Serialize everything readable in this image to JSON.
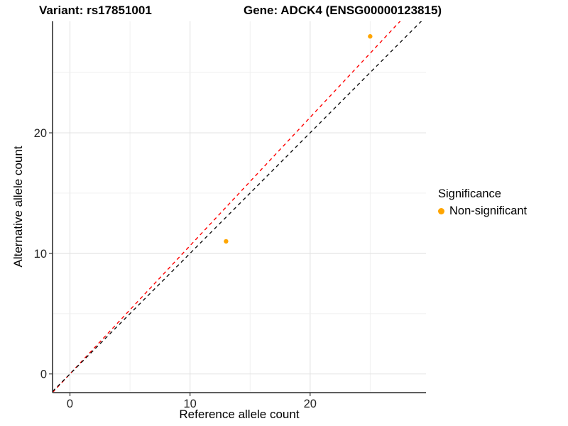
{
  "chart_data": {
    "type": "scatter",
    "title_left": "Variant: rs17851001",
    "title_right": "Gene: ADCK4 (ENSG00000123815)",
    "xlabel": "Reference allele count",
    "ylabel": "Alternative allele count",
    "xlim": [
      -1.45,
      29.65
    ],
    "ylim": [
      -1.55,
      29.25
    ],
    "x_ticks": [
      0,
      10,
      20
    ],
    "y_ticks": [
      0,
      10,
      20
    ],
    "grid": {
      "interval": 5,
      "color_major": "#E4E4E4",
      "color_minor": "#EFEFEF"
    },
    "axis_color": "#474747",
    "series": [
      {
        "name": "Non-significant",
        "color": "#FFA500",
        "points": [
          {
            "x": 13,
            "y": 11
          },
          {
            "x": 25,
            "y": 28
          }
        ]
      }
    ],
    "reference_lines": [
      {
        "id": "fitted-line",
        "slope": 1.064,
        "intercept": 0,
        "color": "#FF0000",
        "style": "dashed"
      },
      {
        "id": "identity-line",
        "slope": 1.0,
        "intercept": 0,
        "color": "#111111",
        "style": "dashed"
      }
    ],
    "legend": {
      "title": "Significance",
      "items": [
        {
          "label": "Non-significant",
          "color": "#FFA500"
        }
      ],
      "position": "right"
    }
  }
}
